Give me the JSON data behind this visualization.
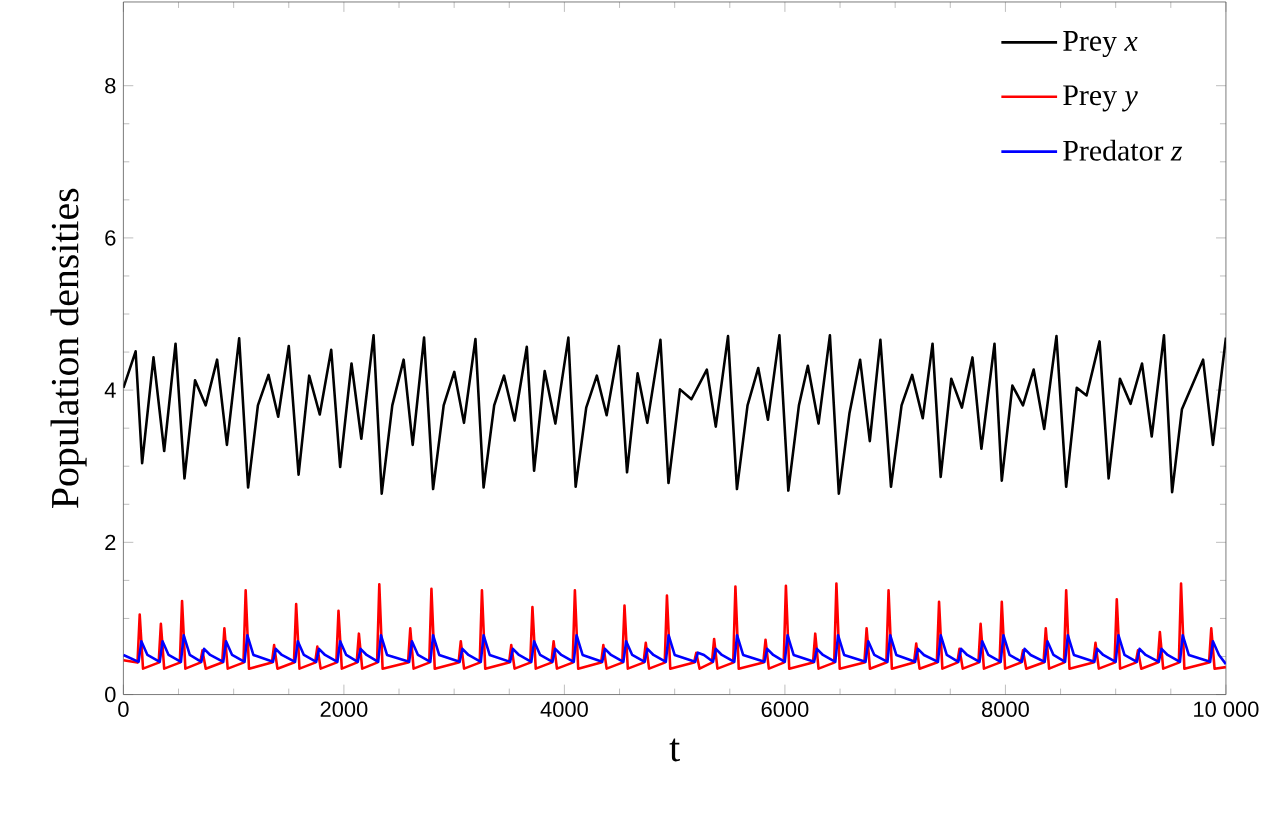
{
  "chart_data": {
    "type": "line",
    "xlabel": "t",
    "ylabel": "Population densities",
    "xlim": [
      0,
      10000
    ],
    "ylim": [
      0,
      9.1
    ],
    "xticks": [
      0,
      2000,
      4000,
      6000,
      8000,
      {
        "value": 10000,
        "label": "10 000"
      }
    ],
    "yticks": [
      0,
      2,
      4,
      6,
      8
    ],
    "grid": false,
    "legend": "top right",
    "line_style": "solid",
    "marker": "none",
    "series": [
      {
        "name": "Prey *x*",
        "color": "#000000",
        "x": [
          0,
          111,
          170,
          273,
          370,
          473,
          554,
          650,
          746,
          850,
          939,
          1050,
          1131,
          1220,
          1316,
          1404,
          1500,
          1589,
          1685,
          1781,
          1885,
          1966,
          2069,
          2158,
          2269,
          2343,
          2439,
          2542,
          2624,
          2727,
          2809,
          2905,
          3001,
          3089,
          3193,
          3267,
          3363,
          3452,
          3548,
          3659,
          3725,
          3821,
          3918,
          4036,
          4102,
          4198,
          4294,
          4383,
          4494,
          4568,
          4664,
          4752,
          4871,
          4944,
          5048,
          5152,
          5292,
          5373,
          5484,
          5565,
          5661,
          5758,
          5846,
          5950,
          6031,
          6127,
          6208,
          6305,
          6408,
          6489,
          6586,
          6682,
          6770,
          6866,
          6962,
          7058,
          7154,
          7250,
          7339,
          7413,
          7509,
          7605,
          7701,
          7782,
          7901,
          7967,
          8063,
          8159,
          8256,
          8352,
          8463,
          8551,
          8647,
          8736,
          8854,
          8936,
          9039,
          9135,
          9239,
          9327,
          9438,
          9512,
          9601,
          9793,
          9882,
          10000
        ],
        "values": [
          4.03,
          4.51,
          3.04,
          4.43,
          3.2,
          4.61,
          2.84,
          4.13,
          3.8,
          4.4,
          3.28,
          4.68,
          2.72,
          3.8,
          4.2,
          3.65,
          4.58,
          2.89,
          4.19,
          3.68,
          4.53,
          2.99,
          4.35,
          3.36,
          4.72,
          2.64,
          3.8,
          4.4,
          3.28,
          4.69,
          2.7,
          3.8,
          4.24,
          3.57,
          4.67,
          2.72,
          3.8,
          4.19,
          3.6,
          4.57,
          2.94,
          4.25,
          3.56,
          4.69,
          2.73,
          3.77,
          4.19,
          3.67,
          4.58,
          2.92,
          4.22,
          3.57,
          4.66,
          2.78,
          4.01,
          3.88,
          4.27,
          3.52,
          4.71,
          2.7,
          3.8,
          4.29,
          3.61,
          4.72,
          2.68,
          3.8,
          4.32,
          3.56,
          4.72,
          2.64,
          3.7,
          4.4,
          3.33,
          4.66,
          2.73,
          3.8,
          4.2,
          3.63,
          4.61,
          2.86,
          4.15,
          3.77,
          4.43,
          3.23,
          4.61,
          2.81,
          4.06,
          3.8,
          4.27,
          3.49,
          4.71,
          2.73,
          4.03,
          3.93,
          4.64,
          2.84,
          4.15,
          3.82,
          4.35,
          3.39,
          4.72,
          2.66,
          3.75,
          4.4,
          3.28,
          4.69
        ]
      },
      {
        "name": "Prey *y*",
        "color": "#ff0000",
        "x": [
          0,
          128,
          148,
          178,
          320,
          340,
          370,
          512,
          532,
          562,
          697,
          717,
          747,
          896,
          916,
          946,
          1089,
          1109,
          1139,
          1347,
          1367,
          1397,
          1547,
          1567,
          1597,
          1739,
          1759,
          1789,
          1931,
          1951,
          1981,
          2116,
          2136,
          2166,
          2301,
          2321,
          2351,
          2582,
          2602,
          2632,
          2774,
          2794,
          2824,
          3040,
          3060,
          3090,
          3232,
          3252,
          3282,
          3498,
          3518,
          3548,
          3690,
          3710,
          3740,
          3882,
          3902,
          3932,
          4075,
          4095,
          4125,
          4333,
          4353,
          4383,
          4525,
          4545,
          4575,
          4718,
          4738,
          4768,
          4910,
          4930,
          4960,
          5176,
          5196,
          5226,
          5338,
          5358,
          5388,
          5531,
          5551,
          5581,
          5804,
          5824,
          5854,
          5989,
          6009,
          6039,
          6255,
          6275,
          6305,
          6447,
          6467,
          6497,
          6721,
          6741,
          6771,
          6920,
          6940,
          6970,
          7171,
          7191,
          7221,
          7378,
          7398,
          7428,
          7563,
          7583,
          7613,
          7755,
          7775,
          7805,
          7947,
          7967,
          7997,
          8139,
          8159,
          8189,
          8346,
          8366,
          8396,
          8531,
          8551,
          8581,
          8797,
          8817,
          8847,
          8990,
          9010,
          9040,
          9182,
          9202,
          9232,
          9381,
          9401,
          9431,
          9573,
          9593,
          9623,
          9847,
          9867,
          9897,
          10000
        ],
        "values": [
          0.45,
          0.42,
          1.05,
          0.34,
          0.42,
          0.93,
          0.34,
          0.42,
          1.23,
          0.34,
          0.42,
          0.58,
          0.34,
          0.42,
          0.87,
          0.34,
          0.42,
          1.37,
          0.34,
          0.42,
          0.65,
          0.34,
          0.42,
          1.19,
          0.34,
          0.42,
          0.63,
          0.34,
          0.42,
          1.1,
          0.34,
          0.42,
          0.8,
          0.34,
          0.42,
          1.45,
          0.34,
          0.42,
          0.87,
          0.34,
          0.42,
          1.39,
          0.34,
          0.42,
          0.7,
          0.34,
          0.42,
          1.37,
          0.34,
          0.42,
          0.65,
          0.34,
          0.42,
          1.15,
          0.34,
          0.42,
          0.7,
          0.34,
          0.42,
          1.37,
          0.34,
          0.42,
          0.65,
          0.34,
          0.42,
          1.17,
          0.34,
          0.42,
          0.68,
          0.34,
          0.42,
          1.3,
          0.34,
          0.42,
          0.55,
          0.34,
          0.42,
          0.73,
          0.34,
          0.42,
          1.42,
          0.34,
          0.42,
          0.72,
          0.34,
          0.42,
          1.43,
          0.34,
          0.42,
          0.8,
          0.34,
          0.42,
          1.46,
          0.34,
          0.42,
          0.87,
          0.34,
          0.42,
          1.37,
          0.34,
          0.42,
          0.67,
          0.34,
          0.42,
          1.22,
          0.34,
          0.42,
          0.6,
          0.34,
          0.42,
          0.93,
          0.34,
          0.42,
          1.22,
          0.34,
          0.42,
          0.58,
          0.34,
          0.42,
          0.87,
          0.34,
          0.42,
          1.37,
          0.34,
          0.42,
          0.68,
          0.34,
          0.42,
          1.25,
          0.34,
          0.42,
          0.58,
          0.34,
          0.42,
          0.82,
          0.34,
          0.42,
          1.46,
          0.34,
          0.42,
          0.87,
          0.34,
          0.36
        ]
      },
      {
        "name": "Predator *z*",
        "color": "#0000ff",
        "x": [
          0,
          138,
          163,
          218,
          330,
          355,
          410,
          522,
          547,
          602,
          707,
          732,
          787,
          906,
          931,
          986,
          1099,
          1124,
          1179,
          1357,
          1382,
          1437,
          1557,
          1582,
          1637,
          1749,
          1774,
          1829,
          1941,
          1966,
          2021,
          2126,
          2151,
          2206,
          2311,
          2336,
          2391,
          2592,
          2617,
          2672,
          2784,
          2809,
          2864,
          3050,
          3075,
          3130,
          3242,
          3267,
          3322,
          3508,
          3533,
          3588,
          3700,
          3725,
          3780,
          3892,
          3917,
          3972,
          4085,
          4110,
          4165,
          4343,
          4368,
          4423,
          4535,
          4560,
          4615,
          4728,
          4753,
          4808,
          4920,
          4945,
          5000,
          5186,
          5211,
          5266,
          5348,
          5373,
          5428,
          5541,
          5566,
          5621,
          5814,
          5839,
          5894,
          5999,
          6024,
          6079,
          6265,
          6290,
          6345,
          6457,
          6482,
          6537,
          6731,
          6756,
          6811,
          6930,
          6955,
          7010,
          7181,
          7206,
          7261,
          7388,
          7413,
          7468,
          7573,
          7598,
          7653,
          7765,
          7790,
          7845,
          7957,
          7982,
          8037,
          8149,
          8174,
          8229,
          8356,
          8381,
          8436,
          8541,
          8566,
          8621,
          8807,
          8832,
          8887,
          9000,
          9025,
          9080,
          9192,
          9217,
          9272,
          9391,
          9416,
          9471,
          9583,
          9608,
          9663,
          9857,
          9882,
          9937,
          10000
        ],
        "values": [
          0.52,
          0.43,
          0.7,
          0.52,
          0.43,
          0.7,
          0.52,
          0.43,
          0.78,
          0.52,
          0.43,
          0.6,
          0.52,
          0.43,
          0.7,
          0.52,
          0.43,
          0.78,
          0.52,
          0.43,
          0.6,
          0.52,
          0.43,
          0.7,
          0.52,
          0.43,
          0.6,
          0.52,
          0.43,
          0.7,
          0.52,
          0.43,
          0.6,
          0.52,
          0.43,
          0.78,
          0.52,
          0.43,
          0.7,
          0.52,
          0.43,
          0.78,
          0.52,
          0.43,
          0.6,
          0.52,
          0.43,
          0.78,
          0.52,
          0.43,
          0.6,
          0.52,
          0.43,
          0.7,
          0.52,
          0.43,
          0.6,
          0.52,
          0.43,
          0.78,
          0.52,
          0.43,
          0.6,
          0.52,
          0.43,
          0.7,
          0.52,
          0.43,
          0.6,
          0.52,
          0.43,
          0.78,
          0.52,
          0.43,
          0.55,
          0.52,
          0.43,
          0.6,
          0.52,
          0.43,
          0.78,
          0.52,
          0.43,
          0.6,
          0.52,
          0.43,
          0.78,
          0.52,
          0.43,
          0.6,
          0.52,
          0.43,
          0.78,
          0.52,
          0.43,
          0.7,
          0.52,
          0.43,
          0.78,
          0.52,
          0.43,
          0.6,
          0.52,
          0.43,
          0.78,
          0.52,
          0.43,
          0.6,
          0.52,
          0.43,
          0.7,
          0.52,
          0.43,
          0.78,
          0.52,
          0.43,
          0.6,
          0.52,
          0.43,
          0.7,
          0.52,
          0.43,
          0.78,
          0.52,
          0.43,
          0.6,
          0.52,
          0.43,
          0.78,
          0.52,
          0.43,
          0.6,
          0.52,
          0.43,
          0.6,
          0.52,
          0.43,
          0.78,
          0.52,
          0.43,
          0.7,
          0.52,
          0.4
        ]
      }
    ]
  }
}
